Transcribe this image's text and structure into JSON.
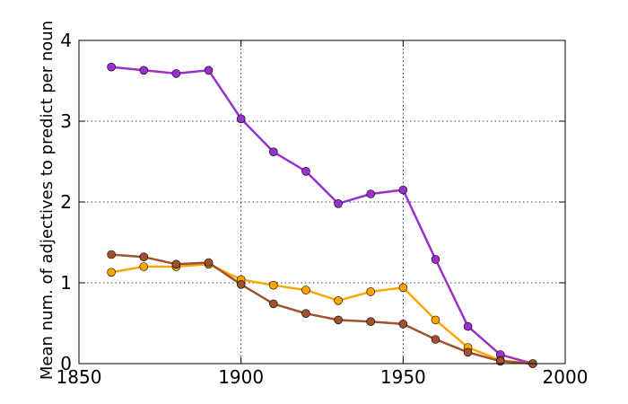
{
  "chart_data": {
    "type": "line",
    "xlabel": "",
    "ylabel": "Mean num. of adjectives to predict per noun",
    "xlim": [
      1850,
      2000
    ],
    "ylim": [
      0,
      4
    ],
    "xticks": [
      "1850",
      "1900",
      "1950",
      "2000"
    ],
    "yticks": [
      "0",
      "1",
      "2",
      "3",
      "4"
    ],
    "grid": true,
    "x": [
      1860,
      1870,
      1880,
      1890,
      1900,
      1910,
      1920,
      1930,
      1940,
      1950,
      1960,
      1970,
      1980,
      1990
    ],
    "series": [
      {
        "color": "#9932CC",
        "values": [
          3.67,
          3.63,
          3.59,
          3.63,
          3.03,
          2.62,
          2.38,
          1.98,
          2.1,
          2.15,
          1.29,
          0.46,
          0.11,
          0.0
        ]
      },
      {
        "color": "#FFA500",
        "values": [
          1.13,
          1.2,
          1.2,
          1.23,
          1.04,
          0.97,
          0.91,
          0.78,
          0.89,
          0.94,
          0.54,
          0.2,
          0.04,
          0.0
        ]
      },
      {
        "color": "#A0522D",
        "values": [
          1.35,
          1.32,
          1.23,
          1.25,
          0.98,
          0.74,
          0.62,
          0.54,
          0.52,
          0.49,
          0.3,
          0.14,
          0.03,
          0.0
        ]
      }
    ]
  }
}
